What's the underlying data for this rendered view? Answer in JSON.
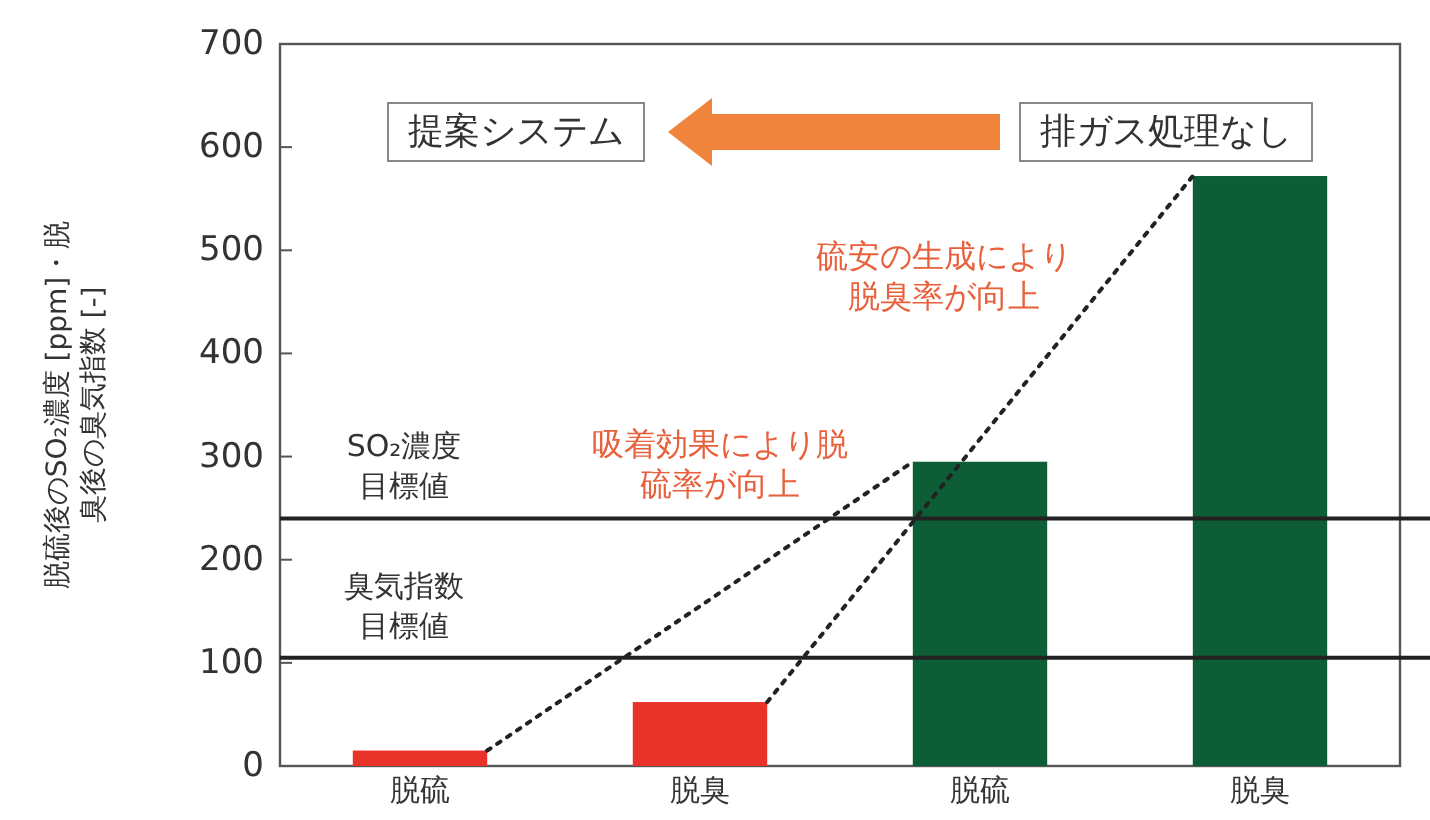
{
  "chart_data": {
    "type": "bar",
    "ylabel": "脱硫後のSO₂濃度 [ppm]・脱臭後の臭気指数 [-]",
    "categories": [
      "脱硫",
      "脱臭",
      "脱硫",
      "脱臭"
    ],
    "values": [
      15,
      62,
      295,
      572
    ],
    "colors": [
      "#e8322a",
      "#e8322a",
      "#0d5e36",
      "#0d5e36"
    ],
    "ylim": [
      0,
      700
    ],
    "yticks": [
      0,
      100,
      200,
      300,
      400,
      500,
      600,
      700
    ],
    "ref_lines": [
      {
        "axis": "y",
        "value": 240,
        "label": "SO₂濃度目標値",
        "color": "#222222"
      },
      {
        "axis": "y",
        "value": 105,
        "label": "臭気指数目標値",
        "color": "#222222"
      }
    ],
    "annotations": [
      "提案システム",
      "排ガス処理なし",
      "硫安の生成により脱臭率が向上",
      "吸着効果により脱硫率が向上"
    ],
    "grid": false
  }
}
